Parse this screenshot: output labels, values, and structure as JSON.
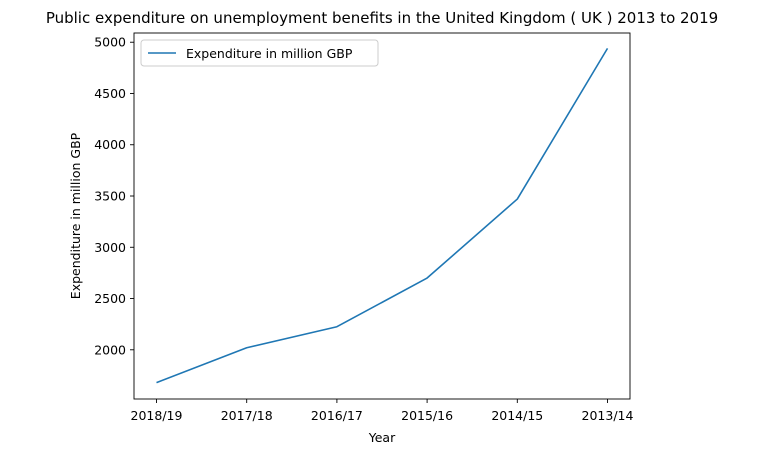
{
  "chart_data": {
    "type": "line",
    "title": "Public expenditure on unemployment benefits in the United Kingdom ( UK ) 2013 to 2019",
    "xlabel": "Year",
    "ylabel": "Expenditure in million GBP",
    "categories": [
      "2018/19",
      "2017/18",
      "2016/17",
      "2015/16",
      "2014/15",
      "2013/14"
    ],
    "series": [
      {
        "name": "Expenditure in million GBP",
        "values": [
          1680,
          2020,
          2225,
          2700,
          3470,
          4940
        ],
        "color": "#1f77b4"
      }
    ],
    "ylim": [
      1520,
      5090
    ],
    "yticks": [
      2000,
      2500,
      3000,
      3500,
      4000,
      4500,
      5000
    ],
    "grid": false,
    "legend_position": "upper-left"
  }
}
